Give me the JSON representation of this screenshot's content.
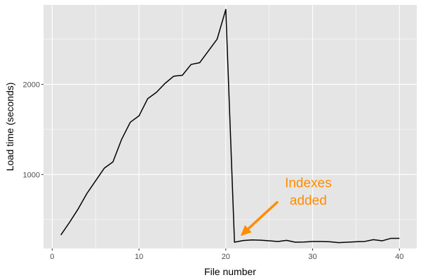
{
  "chart_data": {
    "type": "line",
    "title": "",
    "xlabel": "File number",
    "ylabel": "Load time (seconds)",
    "xlim": [
      -1,
      42
    ],
    "ylim": [
      180,
      2880
    ],
    "x_ticks": [
      0,
      10,
      20,
      30,
      40
    ],
    "x_tick_labels": [
      "0",
      "10",
      "20",
      "30",
      "40"
    ],
    "y_ticks": [
      1000,
      2000
    ],
    "y_tick_labels": [
      "1000",
      "2000"
    ],
    "grid": true,
    "series": [
      {
        "x": [
          1,
          2,
          3,
          4,
          5,
          6,
          7,
          8,
          9,
          10,
          11,
          12,
          13,
          14,
          15,
          16,
          17,
          18,
          19,
          20,
          21,
          22,
          23,
          24,
          25,
          26,
          27,
          28,
          29,
          30,
          31,
          32,
          33,
          34,
          35,
          36,
          37,
          38,
          39,
          40
        ],
        "values": [
          330,
          470,
          620,
          790,
          930,
          1070,
          1140,
          1390,
          1580,
          1650,
          1840,
          1910,
          2010,
          2090,
          2100,
          2220,
          2240,
          2370,
          2500,
          2830,
          250,
          268,
          275,
          272,
          265,
          258,
          270,
          250,
          252,
          258,
          258,
          255,
          245,
          250,
          255,
          258,
          278,
          265,
          292,
          292
        ]
      }
    ],
    "annotation": {
      "text_line1": "Indexes",
      "text_line2": "added",
      "color": "#FF8C00",
      "arrow_from": [
        26,
        700
      ],
      "arrow_to": [
        21.7,
        320
      ],
      "text_anchor_point": [
        29.5,
        860
      ]
    }
  },
  "colors": {
    "panel_bg": "#E5E5E5",
    "grid_major": "#FFFFFF",
    "line": "#000000",
    "accent": "#FF8C00"
  }
}
